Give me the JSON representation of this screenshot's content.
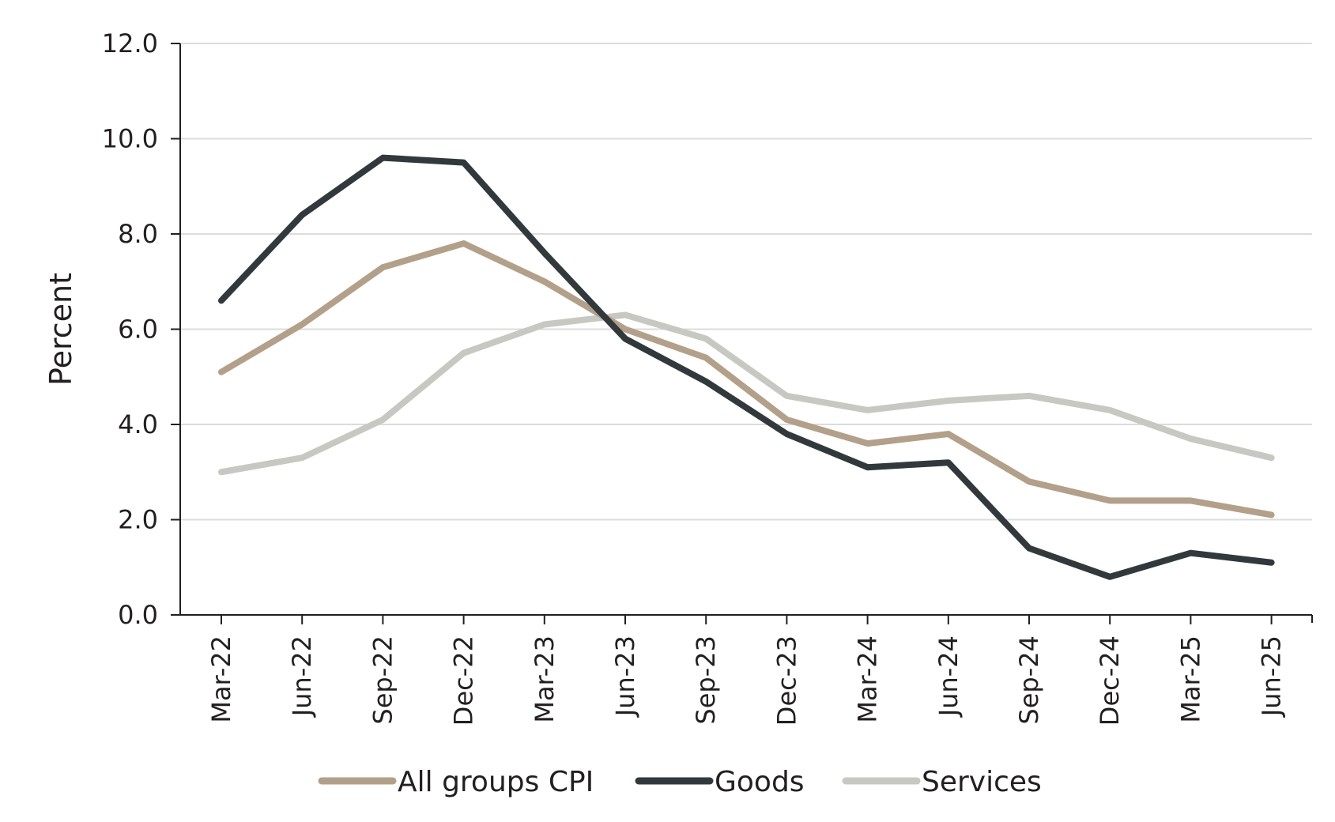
{
  "chart_data": {
    "type": "line",
    "title": "",
    "xlabel": "",
    "ylabel": "Percent",
    "ylim": [
      0,
      12
    ],
    "y_ticks": [
      "0.0",
      "2.0",
      "4.0",
      "6.0",
      "8.0",
      "10.0",
      "12.0"
    ],
    "grid": true,
    "legend_position": "bottom-center",
    "categories": [
      "Mar-22",
      "Jun-22",
      "Sep-22",
      "Dec-22",
      "Mar-23",
      "Jun-23",
      "Sep-23",
      "Dec-23",
      "Mar-24",
      "Jun-24",
      "Sep-24",
      "Dec-24",
      "Mar-25",
      "Jun-25"
    ],
    "series": [
      {
        "name": "All groups CPI",
        "color": "#b3a08a",
        "values": [
          5.1,
          6.1,
          7.3,
          7.8,
          7.0,
          6.0,
          5.4,
          4.1,
          3.6,
          3.8,
          2.8,
          2.4,
          2.4,
          2.1
        ]
      },
      {
        "name": "Goods",
        "color": "#32393d",
        "values": [
          6.6,
          8.4,
          9.6,
          9.5,
          7.6,
          5.8,
          4.9,
          3.8,
          3.1,
          3.2,
          1.4,
          0.8,
          1.3,
          1.1
        ]
      },
      {
        "name": "Services",
        "color": "#c8c8c2",
        "values": [
          3.0,
          3.3,
          4.1,
          5.5,
          6.1,
          6.3,
          5.8,
          4.6,
          4.3,
          4.5,
          4.6,
          4.3,
          3.7,
          3.3
        ]
      }
    ]
  }
}
